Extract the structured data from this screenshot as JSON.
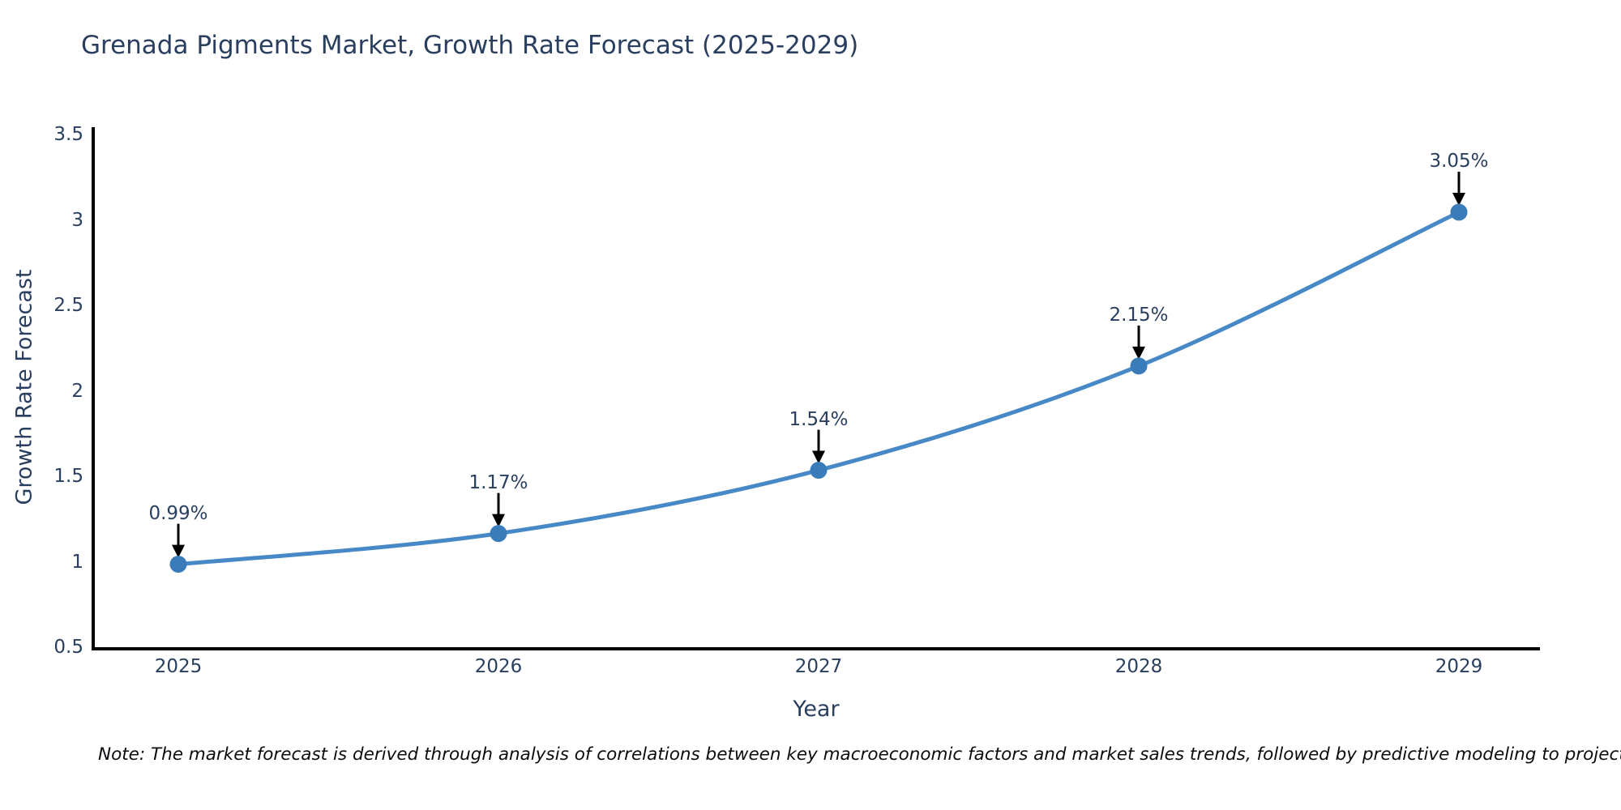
{
  "chart": {
    "title": "Grenada Pigments Market, Growth Rate Forecast (2025-2029)",
    "xlabel": "Year",
    "ylabel": "Growth Rate Forecast",
    "note": "Note: The market forecast is derived through analysis of correlations between key macroeconomic factors and market sales trends, followed by predictive modeling to project future sales",
    "colors": {
      "line": "#4788c7",
      "marker": "#3a7cba",
      "axis": "#000000",
      "text": "#2a3f5f",
      "note_text": "#0b0c10",
      "arrow": "#000000",
      "background": "#ffffff"
    }
  },
  "chart_data": {
    "type": "line",
    "x": [
      "2025",
      "2026",
      "2027",
      "2028",
      "2029"
    ],
    "values": [
      0.99,
      1.17,
      1.54,
      2.15,
      3.05
    ],
    "point_labels": [
      "0.99%",
      "1.17%",
      "1.54%",
      "2.15%",
      "3.05%"
    ],
    "series": [
      {
        "name": "Growth Rate Forecast",
        "values": [
          0.99,
          1.17,
          1.54,
          2.15,
          3.05
        ]
      }
    ],
    "title": "Grenada Pigments Market, Growth Rate Forecast (2025-2029)",
    "xlabel": "Year",
    "ylabel": "Growth Rate Forecast",
    "ylim": [
      0.5,
      3.5
    ],
    "yticks": [
      0.5,
      1,
      1.5,
      2,
      2.5,
      3,
      3.5
    ],
    "grid": false,
    "legend_position": "none",
    "line_shape": "spline",
    "markers": true,
    "annotations": "arrow-from-label-to-point"
  }
}
